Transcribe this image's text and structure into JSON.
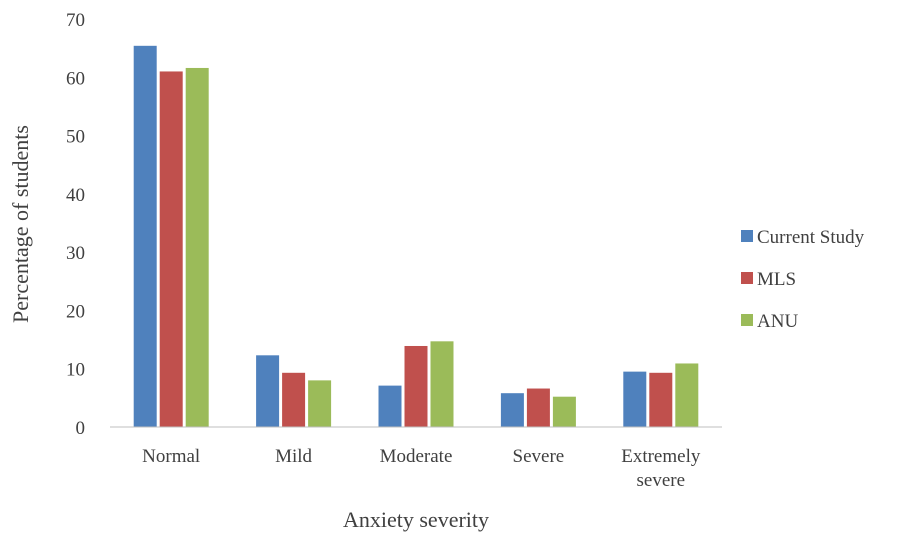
{
  "chart_data": {
    "type": "bar",
    "xlabel": "Anxiety severity",
    "ylabel": "Percentage of students",
    "ylim": [
      0,
      70
    ],
    "yticks": [
      0,
      10,
      20,
      30,
      40,
      50,
      60,
      70
    ],
    "grid": false,
    "legend_position": "right",
    "categories": [
      [
        "Normal"
      ],
      [
        "Mild"
      ],
      [
        "Moderate"
      ],
      [
        "Severe"
      ],
      [
        "Extremely",
        "severe"
      ]
    ],
    "series": [
      {
        "name": "Current Study",
        "color": "#4f81bd",
        "values": [
          65.4,
          12.3,
          7.1,
          5.8,
          9.5
        ]
      },
      {
        "name": "MLS",
        "color": "#c0504d",
        "values": [
          61.0,
          9.3,
          13.9,
          6.6,
          9.3
        ]
      },
      {
        "name": "ANU",
        "color": "#9bbb59",
        "values": [
          61.6,
          8.0,
          14.7,
          5.2,
          10.9
        ]
      }
    ]
  }
}
